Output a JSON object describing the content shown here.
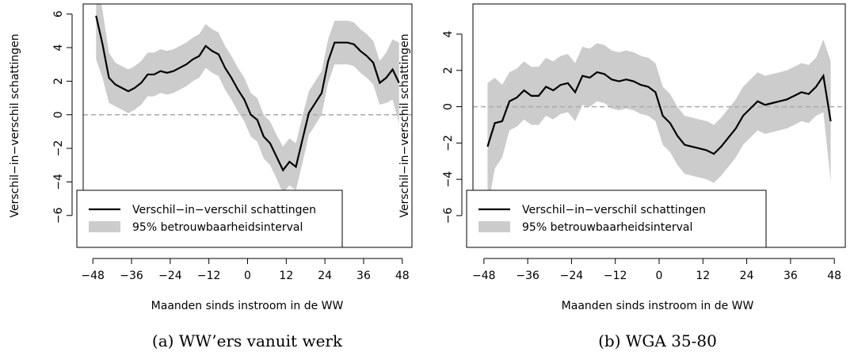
{
  "chart_data": [
    {
      "type": "line",
      "caption": "(a) WW’ers vanuit werk",
      "xlabel": "Maanden sinds instroom in de WW",
      "ylabel": "Verschil−in−verschil schattingen",
      "x": [
        -47,
        -45,
        -43,
        -41,
        -39,
        -37,
        -35,
        -33,
        -31,
        -29,
        -27,
        -25,
        -23,
        -21,
        -19,
        -17,
        -15,
        -13,
        -11,
        -9,
        -7,
        -5,
        -3,
        -1,
        1,
        3,
        5,
        7,
        9,
        11,
        13,
        15,
        17,
        19,
        21,
        23,
        25,
        27,
        29,
        31,
        33,
        35,
        37,
        39,
        41,
        43,
        45,
        47
      ],
      "series": [
        {
          "name": "Verschil−in−verschil schattingen",
          "color": "#000000",
          "values": [
            5.9,
            4.2,
            2.2,
            1.8,
            1.6,
            1.4,
            1.6,
            1.9,
            2.4,
            2.4,
            2.6,
            2.5,
            2.6,
            2.8,
            3.0,
            3.3,
            3.5,
            4.1,
            3.8,
            3.6,
            2.8,
            2.2,
            1.5,
            0.9,
            0.0,
            -0.3,
            -1.3,
            -1.7,
            -2.5,
            -3.3,
            -2.8,
            -3.1,
            -1.5,
            0.1,
            0.7,
            1.3,
            3.2,
            4.3,
            4.3,
            4.3,
            4.2,
            3.8,
            3.5,
            3.1,
            1.9,
            2.2,
            2.7,
            1.9
          ]
        },
        {
          "name": "95% betrouwbaarheidsinterval",
          "color": "#cccccc",
          "lower": [
            3.3,
            2.2,
            0.7,
            0.5,
            0.3,
            0.1,
            0.3,
            0.6,
            1.1,
            1.1,
            1.3,
            1.2,
            1.3,
            1.5,
            1.7,
            2.0,
            2.2,
            2.8,
            2.5,
            2.3,
            1.5,
            0.9,
            0.2,
            -0.4,
            -1.3,
            -1.6,
            -2.6,
            -3.0,
            -3.8,
            -4.7,
            -4.2,
            -4.5,
            -2.9,
            -1.2,
            -0.6,
            0.0,
            1.9,
            3.0,
            3.0,
            3.0,
            2.9,
            2.5,
            2.2,
            1.8,
            0.6,
            0.7,
            0.9,
            -0.5
          ],
          "upper": [
            8.5,
            6.2,
            3.7,
            3.1,
            2.9,
            2.7,
            2.9,
            3.2,
            3.7,
            3.7,
            3.9,
            3.8,
            3.9,
            4.1,
            4.3,
            4.6,
            4.8,
            5.4,
            5.1,
            4.9,
            4.1,
            3.5,
            2.8,
            2.2,
            1.3,
            1.0,
            0.0,
            -0.4,
            -1.2,
            -1.9,
            -1.4,
            -1.7,
            -0.1,
            1.4,
            2.0,
            2.6,
            4.5,
            5.6,
            5.6,
            5.6,
            5.5,
            5.1,
            4.8,
            4.4,
            3.2,
            3.7,
            4.5,
            4.3
          ]
        }
      ],
      "hline": 0,
      "legend": "bottomleft",
      "xlim": [
        -51,
        51
      ],
      "ylim": [
        -7.9,
        6.6
      ],
      "xticks": [
        {
          "value": -48,
          "label": "−48"
        },
        {
          "value": -36,
          "label": "−36"
        },
        {
          "value": -24,
          "label": "−24"
        },
        {
          "value": -12,
          "label": "−12"
        },
        0,
        12,
        24,
        36,
        48
      ],
      "yticks": [
        {
          "value": -6,
          "label": "−6"
        },
        {
          "value": -4,
          "label": "−4"
        },
        {
          "value": -2,
          "label": "−2"
        },
        0,
        2,
        4,
        6
      ]
    },
    {
      "type": "line",
      "caption": "(b) WGA 35-80",
      "xlabel": "Maanden sinds instroom in de WW",
      "ylabel": "Verschil−in−verschil schattingen",
      "x": [
        -47,
        -45,
        -43,
        -41,
        -39,
        -37,
        -35,
        -33,
        -31,
        -29,
        -27,
        -25,
        -23,
        -21,
        -19,
        -17,
        -15,
        -13,
        -11,
        -9,
        -7,
        -5,
        -3,
        -1,
        1,
        3,
        5,
        7,
        9,
        11,
        13,
        15,
        17,
        19,
        21,
        23,
        25,
        27,
        29,
        31,
        33,
        35,
        37,
        39,
        41,
        43,
        45,
        47
      ],
      "series": [
        {
          "name": "Verschil−in−verschil schattingen",
          "color": "#000000",
          "values": [
            -2.2,
            -0.9,
            -0.8,
            0.3,
            0.5,
            0.9,
            0.6,
            0.6,
            1.1,
            0.9,
            1.2,
            1.3,
            0.8,
            1.7,
            1.6,
            1.9,
            1.8,
            1.5,
            1.4,
            1.5,
            1.4,
            1.2,
            1.1,
            0.8,
            -0.5,
            -0.9,
            -1.6,
            -2.1,
            -2.2,
            -2.3,
            -2.4,
            -2.6,
            -2.2,
            -1.7,
            -1.2,
            -0.5,
            -0.1,
            0.3,
            0.1,
            0.2,
            0.3,
            0.4,
            0.6,
            0.8,
            0.7,
            1.1,
            1.7,
            -0.8
          ]
        },
        {
          "name": "95% betrouwbaarheidsinterval",
          "color": "#cccccc",
          "lower": [
            -5.7,
            -3.4,
            -2.8,
            -1.3,
            -1.1,
            -0.7,
            -1.0,
            -1.0,
            -0.5,
            -0.7,
            -0.4,
            -0.3,
            -0.8,
            0.1,
            0.0,
            0.3,
            0.2,
            -0.1,
            -0.2,
            -0.1,
            -0.2,
            -0.4,
            -0.5,
            -0.8,
            -2.1,
            -2.5,
            -3.2,
            -3.7,
            -3.8,
            -3.9,
            -4.0,
            -4.2,
            -3.8,
            -3.3,
            -2.8,
            -2.1,
            -1.7,
            -1.3,
            -1.5,
            -1.4,
            -1.3,
            -1.2,
            -1.0,
            -0.8,
            -0.9,
            -0.5,
            -0.3,
            -4.1
          ],
          "upper": [
            1.3,
            1.6,
            1.2,
            1.9,
            2.1,
            2.5,
            2.2,
            2.2,
            2.7,
            2.5,
            2.8,
            2.9,
            2.4,
            3.3,
            3.2,
            3.5,
            3.4,
            3.1,
            3.0,
            3.1,
            3.0,
            2.8,
            2.7,
            2.4,
            1.1,
            0.7,
            0.0,
            -0.5,
            -0.6,
            -0.7,
            -0.8,
            -1.0,
            -0.6,
            -0.1,
            0.4,
            1.1,
            1.5,
            1.9,
            1.7,
            1.8,
            1.9,
            2.0,
            2.2,
            2.4,
            2.3,
            2.7,
            3.7,
            2.5
          ]
        }
      ],
      "hline": 0,
      "legend": "bottomleft",
      "xlim": [
        -51,
        51
      ],
      "ylim": [
        -7.75,
        5.66
      ],
      "xticks": [
        {
          "value": -48,
          "label": "−48"
        },
        {
          "value": -36,
          "label": "−36"
        },
        {
          "value": -24,
          "label": "−24"
        },
        {
          "value": -12,
          "label": "−12"
        },
        0,
        12,
        24,
        36,
        48
      ],
      "yticks": [
        {
          "value": -6,
          "label": "−6"
        },
        {
          "value": -4,
          "label": "−4"
        },
        {
          "value": -2,
          "label": "−2"
        },
        0,
        2,
        4
      ]
    }
  ]
}
